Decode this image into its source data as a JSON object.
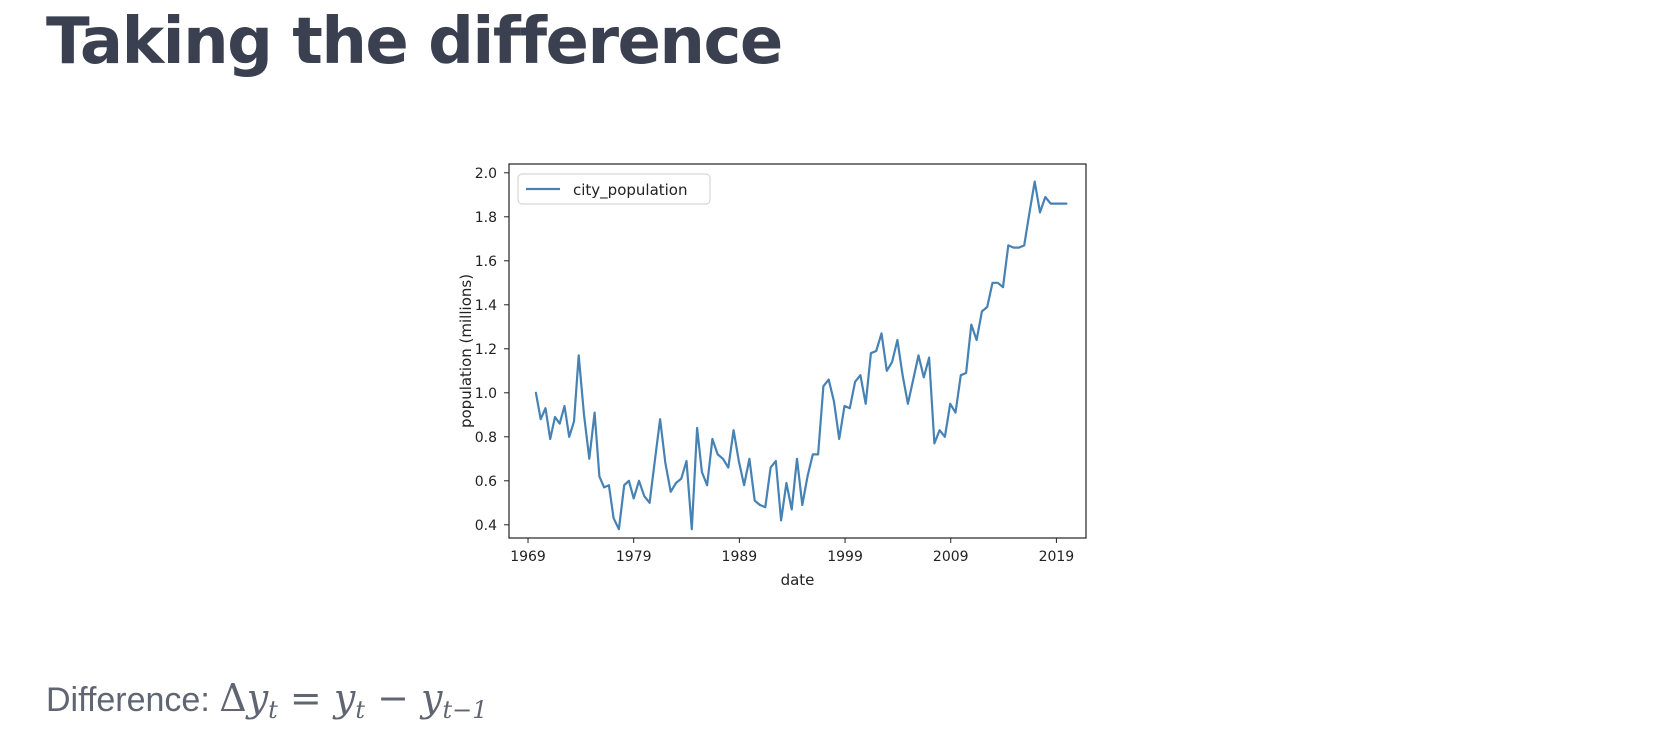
{
  "slide": {
    "title": "Taking the difference"
  },
  "formula": {
    "label": "Difference:",
    "delta": "Δ",
    "y": "y",
    "t": "t",
    "equals": "=",
    "minus": "−",
    "t_minus_1": "t−1"
  },
  "chart_data": {
    "type": "line",
    "title": "",
    "xlabel": "date",
    "ylabel": "population (millions)",
    "xlim": [
      1967.2,
      2021.8
    ],
    "ylim": [
      0.34,
      2.04
    ],
    "xticks": [
      1969,
      1979,
      1989,
      1999,
      2009,
      2019
    ],
    "yticks": [
      0.4,
      0.6,
      0.8,
      1.0,
      1.2,
      1.4,
      1.6,
      1.8,
      2.0
    ],
    "ytick_labels": [
      "0.4",
      "0.6",
      "0.8",
      "1.0",
      "1.2",
      "1.4",
      "1.6",
      "1.8",
      "2.0"
    ],
    "legend_position": "top-left",
    "grid": false,
    "series": [
      {
        "name": "city_population",
        "color": "#4682b4",
        "x": [
          1969.75,
          1970.2,
          1970.65,
          1971.1,
          1971.55,
          1972.0,
          1972.45,
          1972.9,
          1973.35,
          1973.8,
          1974.3,
          1974.8,
          1975.3,
          1975.75,
          1976.2,
          1976.65,
          1977.1,
          1977.6,
          1978.1,
          1978.55,
          1979.0,
          1979.5,
          1980.0,
          1980.5,
          1981.0,
          1981.5,
          1982.0,
          1982.5,
          1983.0,
          1983.5,
          1984.0,
          1984.5,
          1985.0,
          1985.45,
          1985.95,
          1986.45,
          1986.95,
          1987.45,
          1987.95,
          1988.45,
          1988.95,
          1989.45,
          1989.95,
          1990.45,
          1990.95,
          1991.45,
          1991.95,
          1992.45,
          1992.95,
          1993.45,
          1993.95,
          1994.45,
          1994.95,
          1995.45,
          1995.95,
          1996.45,
          1996.95,
          1997.45,
          1997.95,
          1998.45,
          1998.95,
          1999.45,
          1999.95,
          2000.45,
          2000.95,
          2001.45,
          2001.95,
          2002.45,
          2002.95,
          2003.45,
          2003.95,
          2004.45,
          2004.95,
          2005.45,
          2005.95,
          2006.45,
          2006.95,
          2007.45,
          2007.95,
          2008.45,
          2008.95,
          2009.45,
          2009.95,
          2010.45,
          2010.95,
          2011.45,
          2011.95,
          2012.45,
          2012.95,
          2013.45,
          2013.95,
          2014.45,
          2014.95,
          2015.45,
          2015.95,
          2016.45,
          2016.95,
          2017.45,
          2017.95,
          2018.45,
          2018.95,
          2019.45,
          2019.95
        ],
        "values": [
          1.0,
          0.88,
          0.93,
          0.79,
          0.89,
          0.86,
          0.94,
          0.8,
          0.87,
          1.17,
          0.9,
          0.7,
          0.91,
          0.62,
          0.57,
          0.58,
          0.43,
          0.38,
          0.58,
          0.6,
          0.52,
          0.6,
          0.53,
          0.5,
          0.69,
          0.88,
          0.68,
          0.55,
          0.59,
          0.61,
          0.69,
          0.38,
          0.84,
          0.64,
          0.58,
          0.79,
          0.72,
          0.7,
          0.66,
          0.83,
          0.69,
          0.58,
          0.7,
          0.51,
          0.49,
          0.48,
          0.66,
          0.69,
          0.42,
          0.59,
          0.47,
          0.7,
          0.49,
          0.62,
          0.72,
          0.72,
          1.03,
          1.06,
          0.96,
          0.79,
          0.94,
          0.93,
          1.05,
          1.08,
          0.95,
          1.18,
          1.19,
          1.27,
          1.1,
          1.14,
          1.24,
          1.08,
          0.95,
          1.06,
          1.17,
          1.07,
          1.16,
          0.77,
          0.83,
          0.8,
          0.95,
          0.91,
          1.08,
          1.09,
          1.31,
          1.24,
          1.37,
          1.39,
          1.5,
          1.5,
          1.48,
          1.67,
          1.66,
          1.66,
          1.67,
          1.82,
          1.96,
          1.82,
          1.89,
          1.86,
          1.86,
          1.86,
          1.86
        ]
      }
    ]
  }
}
